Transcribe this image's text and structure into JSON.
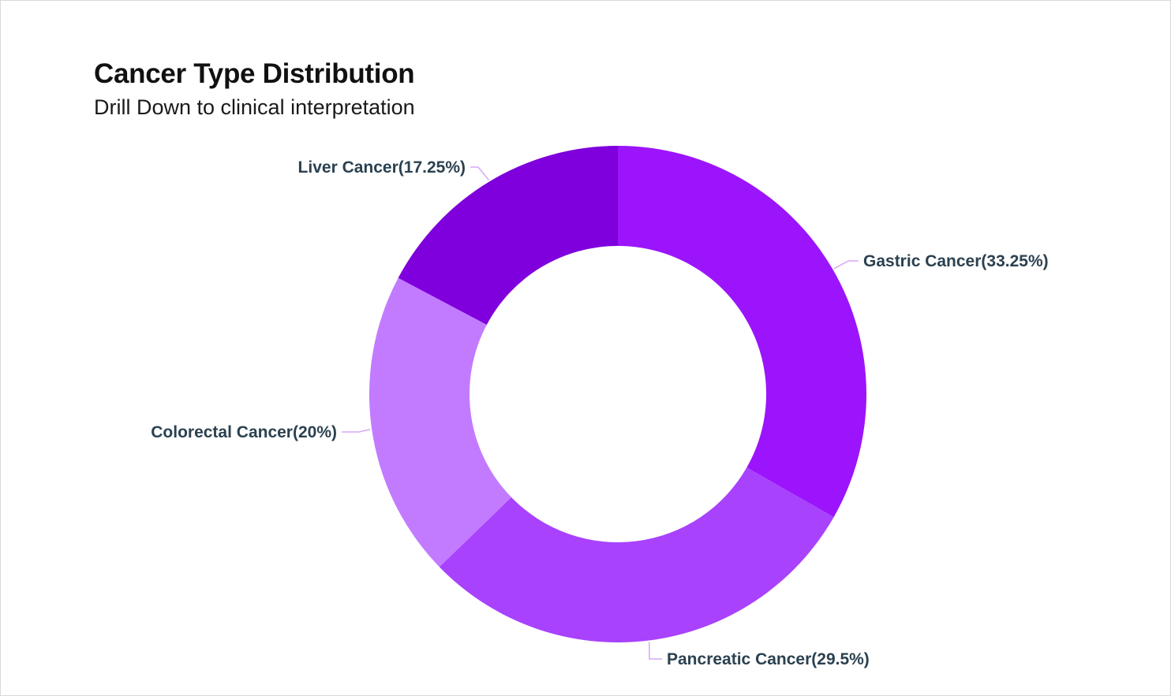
{
  "chart_data": {
    "type": "pie",
    "variant": "donut",
    "title": "Cancer Type Distribution",
    "subtitle": "Drill Down to clinical interpretation",
    "slices": [
      {
        "label": "Gastric Cancer",
        "value": 33.25,
        "display": "Gastric Cancer(33.25%)",
        "color": "#9b14fb"
      },
      {
        "label": "Pancreatic Cancer",
        "value": 29.5,
        "display": "Pancreatic Cancer(29.5%)",
        "color": "#a842fd"
      },
      {
        "label": "Colorectal Cancer",
        "value": 20,
        "display": "Colorectal Cancer(20%)",
        "color": "#c27bff"
      },
      {
        "label": "Liver Cancer",
        "value": 17.25,
        "display": "Liver Cancer(17.25%)",
        "color": "#7f00dc"
      }
    ],
    "leader_color": "#d6a8f5",
    "label_color": "#2b4150",
    "legend": "none"
  }
}
